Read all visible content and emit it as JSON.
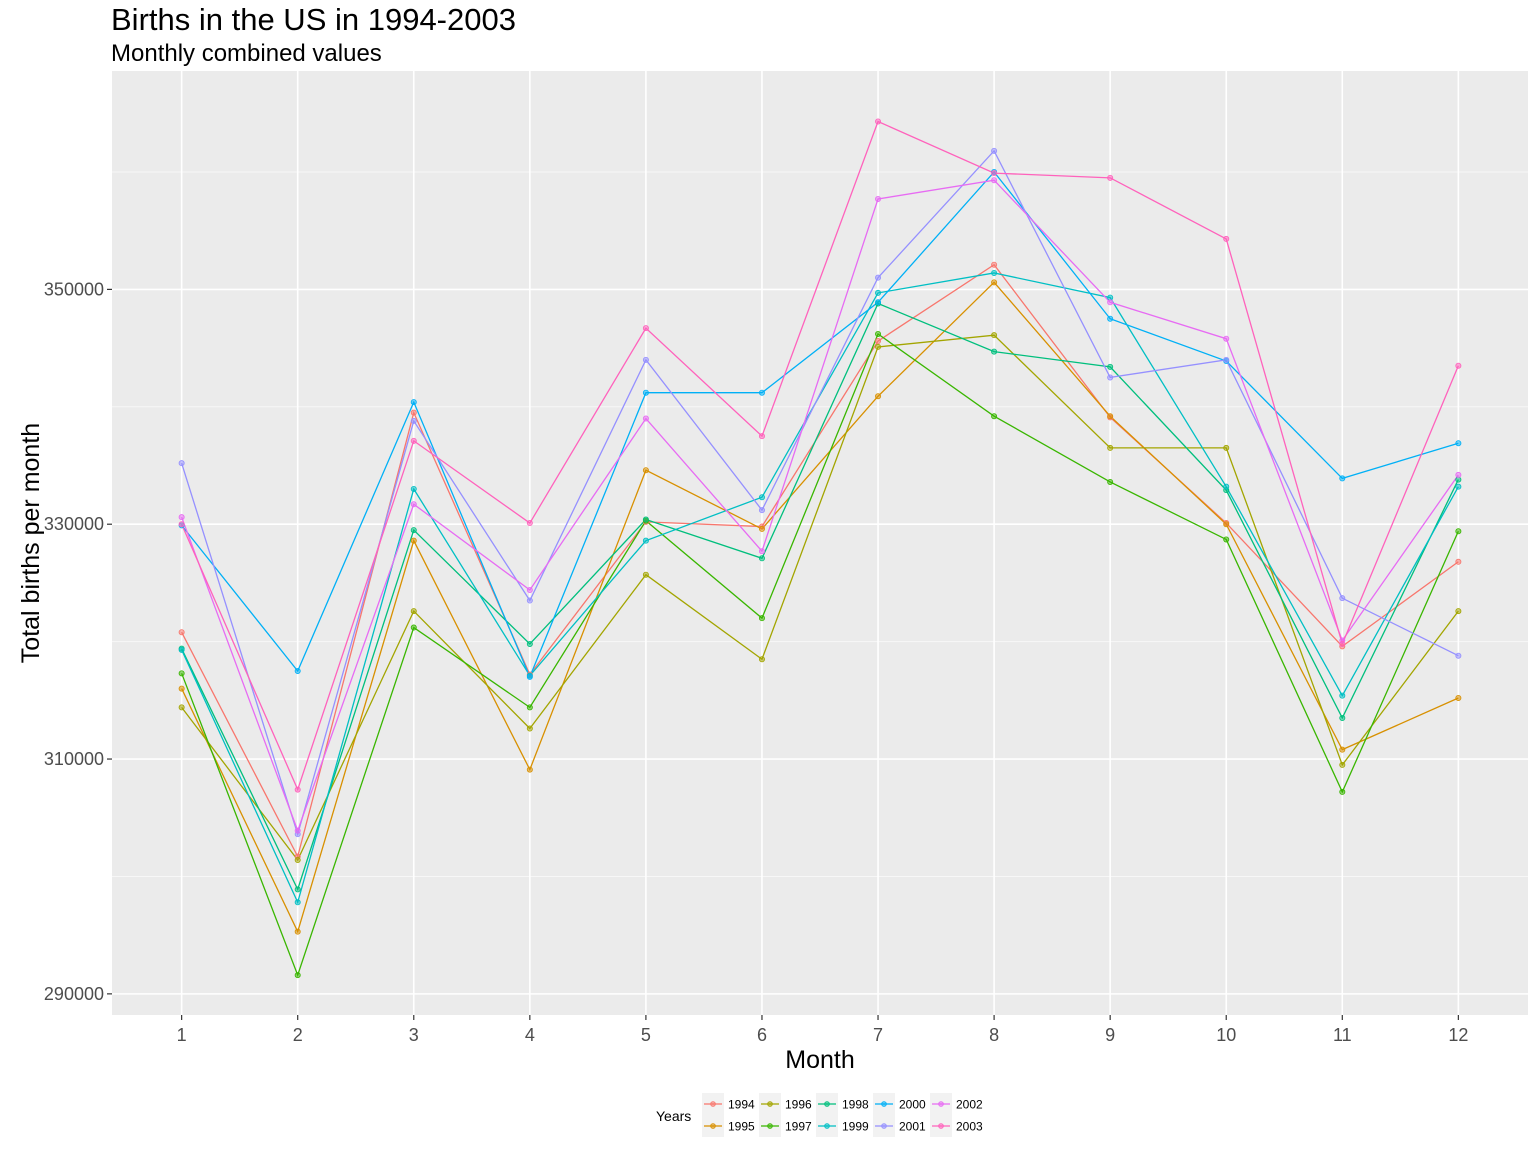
{
  "chart_data": {
    "type": "line",
    "title": "Births in the US in 1994-2003",
    "subtitle": "Monthly combined values",
    "xlabel": "Month",
    "ylabel": "Total births per month",
    "x": [
      1,
      2,
      3,
      4,
      5,
      6,
      7,
      8,
      9,
      10,
      11,
      12
    ],
    "x_ticks": [
      "1",
      "2",
      "3",
      "4",
      "5",
      "6",
      "7",
      "8",
      "9",
      "10",
      "11",
      "12"
    ],
    "y_ticks": [
      "290000",
      "310000",
      "330000",
      "350000"
    ],
    "y_tick_values": [
      290000,
      310000,
      330000,
      350000
    ],
    "ylim": [
      288200,
      368600
    ],
    "xlim": [
      0.4,
      12.6
    ],
    "grid": true,
    "legend": {
      "title": "Years",
      "position": "bottom"
    },
    "series": [
      {
        "name": "1994",
        "color": "#F8766D",
        "values": [
          320800,
          301700,
          339500,
          317200,
          330200,
          329800,
          345600,
          352100,
          339100,
          330100,
          319600,
          326800
        ]
      },
      {
        "name": "1995",
        "color": "#D89000",
        "values": [
          316000,
          295300,
          328600,
          309100,
          334600,
          329600,
          340900,
          350600,
          339200,
          330000,
          310800,
          315200
        ]
      },
      {
        "name": "1996",
        "color": "#A3A500",
        "values": [
          314400,
          301400,
          322600,
          312600,
          325700,
          318500,
          345100,
          346100,
          336500,
          336500,
          309500,
          322600
        ]
      },
      {
        "name": "1997",
        "color": "#39B600",
        "values": [
          317300,
          291600,
          321200,
          314400,
          330300,
          322000,
          346200,
          339200,
          333600,
          328700,
          307200,
          329400
        ]
      },
      {
        "name": "1998",
        "color": "#00BF7D",
        "values": [
          319400,
          298900,
          329500,
          319800,
          330400,
          327100,
          348800,
          344700,
          343400,
          332900,
          313500,
          333800
        ]
      },
      {
        "name": "1999",
        "color": "#00BFC4",
        "values": [
          319300,
          297800,
          333000,
          317100,
          328600,
          332300,
          349700,
          351400,
          349300,
          333200,
          315400,
          333200
        ]
      },
      {
        "name": "2000",
        "color": "#00B0F6",
        "values": [
          329900,
          317500,
          340400,
          317000,
          341200,
          341200,
          348900,
          360000,
          347500,
          343900,
          333900,
          336900
        ]
      },
      {
        "name": "2001",
        "color": "#9590FF",
        "values": [
          335200,
          303600,
          338800,
          323500,
          344000,
          331200,
          351000,
          361800,
          342500,
          344000,
          323700,
          318800
        ]
      },
      {
        "name": "2002",
        "color": "#E76BF3",
        "values": [
          330600,
          303900,
          331700,
          324400,
          339000,
          327700,
          357700,
          359300,
          348900,
          345800,
          320100,
          334200
        ]
      },
      {
        "name": "2003",
        "color": "#FF62BC",
        "values": [
          330000,
          307400,
          337100,
          330100,
          346700,
          337500,
          364300,
          359900,
          359500,
          354300,
          319800,
          343500
        ]
      }
    ]
  }
}
